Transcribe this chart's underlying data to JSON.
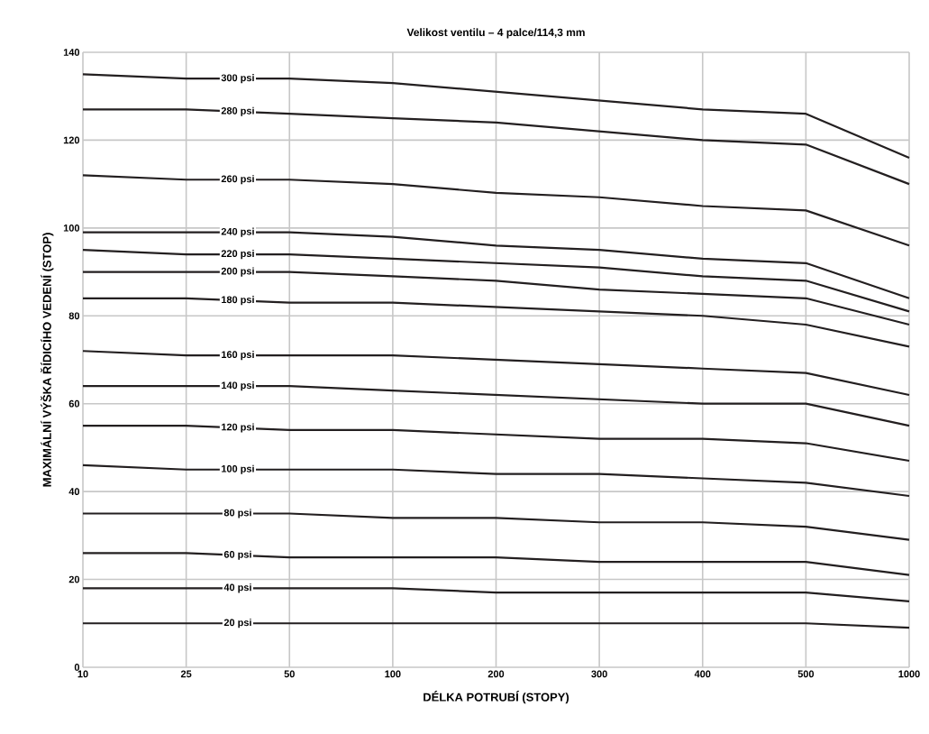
{
  "chart_data": {
    "type": "line",
    "title": "Velikost ventilu – 4 palce/114,3 mm",
    "xlabel": "DÉLKA POTRUBÍ (STOPY)",
    "ylabel": "MAXIMÁLNÍ VÝŠKA ŘÍDICÍHO VEDENÍ (STOP)",
    "categories": [
      "10",
      "25",
      "50",
      "100",
      "200",
      "300",
      "400",
      "500",
      "1000"
    ],
    "ylim": [
      0,
      140
    ],
    "yticks": [
      0,
      20,
      40,
      60,
      80,
      100,
      120,
      140
    ],
    "grid": true,
    "legend": false,
    "marker": "none",
    "line_style": "solid",
    "series": [
      {
        "name": "300 psi",
        "color": "#231f20",
        "values": [
          135,
          134,
          134,
          133,
          131,
          129,
          127,
          126,
          116
        ]
      },
      {
        "name": "280 psi",
        "color": "#231f20",
        "values": [
          127,
          127,
          126,
          125,
          124,
          122,
          120,
          119,
          110
        ]
      },
      {
        "name": "260 psi",
        "color": "#231f20",
        "values": [
          112,
          111,
          111,
          110,
          108,
          107,
          105,
          104,
          96
        ]
      },
      {
        "name": "240 psi",
        "color": "#231f20",
        "values": [
          99,
          99,
          99,
          98,
          96,
          95,
          93,
          92,
          84
        ]
      },
      {
        "name": "220 psi",
        "color": "#231f20",
        "values": [
          95,
          94,
          94,
          93,
          92,
          91,
          89,
          88,
          81
        ]
      },
      {
        "name": "200 psi",
        "color": "#231f20",
        "values": [
          90,
          90,
          90,
          89,
          88,
          86,
          85,
          84,
          78
        ]
      },
      {
        "name": "180 psi",
        "color": "#231f20",
        "values": [
          84,
          84,
          83,
          83,
          82,
          81,
          80,
          78,
          73
        ]
      },
      {
        "name": "160 psi",
        "color": "#231f20",
        "values": [
          72,
          71,
          71,
          71,
          70,
          69,
          68,
          67,
          62
        ]
      },
      {
        "name": "140 psi",
        "color": "#231f20",
        "values": [
          64,
          64,
          64,
          63,
          62,
          61,
          60,
          60,
          55
        ]
      },
      {
        "name": "120 psi",
        "color": "#231f20",
        "values": [
          55,
          55,
          54,
          54,
          53,
          52,
          52,
          51,
          47
        ]
      },
      {
        "name": "100 psi",
        "color": "#231f20",
        "values": [
          46,
          45,
          45,
          45,
          44,
          44,
          43,
          42,
          39
        ]
      },
      {
        "name": "80 psi",
        "color": "#231f20",
        "values": [
          35,
          35,
          35,
          34,
          34,
          33,
          33,
          32,
          29
        ]
      },
      {
        "name": "60 psi",
        "color": "#231f20",
        "values": [
          26,
          26,
          25,
          25,
          25,
          24,
          24,
          24,
          21
        ]
      },
      {
        "name": "40 psi",
        "color": "#231f20",
        "values": [
          18,
          18,
          18,
          18,
          17,
          17,
          17,
          17,
          15
        ]
      },
      {
        "name": "20 psi",
        "color": "#231f20",
        "values": [
          10,
          10,
          10,
          10,
          10,
          10,
          10,
          10,
          9
        ]
      }
    ]
  }
}
